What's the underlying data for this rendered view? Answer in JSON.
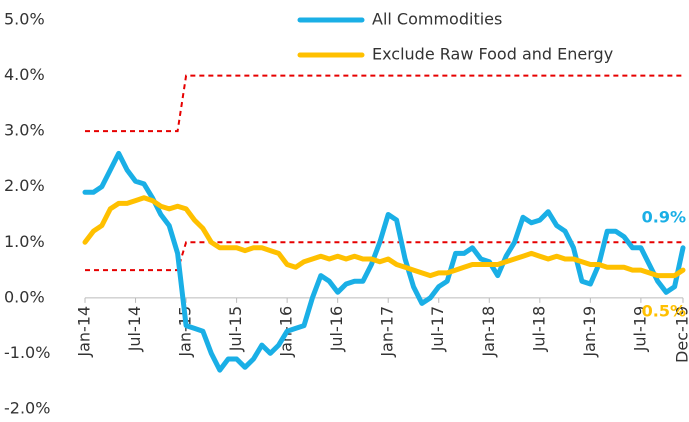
{
  "chart_data": {
    "type": "line",
    "categories": [
      "Jan-14",
      null,
      null,
      null,
      null,
      null,
      "Jul-14",
      null,
      null,
      null,
      null,
      null,
      "Jan-15",
      null,
      null,
      null,
      null,
      null,
      "Jul-15",
      null,
      null,
      null,
      null,
      null,
      "Jan-16",
      null,
      null,
      null,
      null,
      null,
      "Jul-16",
      null,
      null,
      null,
      null,
      null,
      "Jan-17",
      null,
      null,
      null,
      null,
      null,
      "Jul-17",
      null,
      null,
      null,
      null,
      null,
      "Jan-18",
      null,
      null,
      null,
      null,
      null,
      "Jul-18",
      null,
      null,
      null,
      null,
      null,
      "Jan-19",
      null,
      null,
      null,
      null,
      null,
      "Jul-19",
      null,
      null,
      null,
      null,
      "Dec-19"
    ],
    "series": [
      {
        "name": "All Commodities",
        "color": "#1aafe6",
        "values": [
          1.9,
          1.9,
          2.0,
          2.3,
          2.6,
          2.3,
          2.1,
          2.05,
          1.8,
          1.5,
          1.3,
          0.8,
          -0.5,
          -0.55,
          -0.6,
          -1.0,
          -1.3,
          -1.1,
          -1.1,
          -1.25,
          -1.1,
          -0.85,
          -1.0,
          -0.85,
          -0.6,
          -0.55,
          -0.5,
          0.0,
          0.4,
          0.3,
          0.1,
          0.25,
          0.3,
          0.3,
          0.6,
          1.0,
          1.5,
          1.4,
          0.7,
          0.2,
          -0.1,
          0.0,
          0.2,
          0.3,
          0.8,
          0.8,
          0.9,
          0.7,
          0.65,
          0.4,
          0.75,
          1.0,
          1.45,
          1.35,
          1.4,
          1.55,
          1.3,
          1.2,
          0.9,
          0.3,
          0.25,
          0.6,
          1.2,
          1.2,
          1.1,
          0.9,
          0.9,
          0.6,
          0.3,
          0.1,
          0.2,
          0.9
        ]
      },
      {
        "name": "Exclude Raw Food and Energy",
        "color": "#ffc000",
        "values": [
          1.0,
          1.2,
          1.3,
          1.6,
          1.7,
          1.7,
          1.75,
          1.8,
          1.75,
          1.65,
          1.6,
          1.65,
          1.6,
          1.4,
          1.25,
          1.0,
          0.9,
          0.9,
          0.9,
          0.85,
          0.9,
          0.9,
          0.85,
          0.8,
          0.6,
          0.55,
          0.65,
          0.7,
          0.75,
          0.7,
          0.75,
          0.7,
          0.75,
          0.7,
          0.7,
          0.65,
          0.7,
          0.6,
          0.55,
          0.5,
          0.45,
          0.4,
          0.45,
          0.45,
          0.5,
          0.55,
          0.6,
          0.6,
          0.6,
          0.6,
          0.65,
          0.7,
          0.75,
          0.8,
          0.75,
          0.7,
          0.75,
          0.7,
          0.7,
          0.65,
          0.6,
          0.6,
          0.55,
          0.55,
          0.55,
          0.5,
          0.5,
          0.45,
          0.4,
          0.4,
          0.4,
          0.5
        ]
      }
    ],
    "reference_lines": [
      {
        "color": "#e60000",
        "values": [
          3,
          3,
          3,
          3,
          3,
          3,
          3,
          3,
          3,
          3,
          3,
          3,
          4,
          4,
          4,
          4,
          4,
          4,
          4,
          4,
          4,
          4,
          4,
          4,
          4,
          4,
          4,
          4,
          4,
          4,
          4,
          4,
          4,
          4,
          4,
          4,
          4,
          4,
          4,
          4,
          4,
          4,
          4,
          4,
          4,
          4,
          4,
          4,
          4,
          4,
          4,
          4,
          4,
          4,
          4,
          4,
          4,
          4,
          4,
          4,
          4,
          4,
          4,
          4,
          4,
          4,
          4,
          4,
          4,
          4,
          4,
          4
        ]
      },
      {
        "color": "#e60000",
        "values": [
          0.5,
          0.5,
          0.5,
          0.5,
          0.5,
          0.5,
          0.5,
          0.5,
          0.5,
          0.5,
          0.5,
          0.5,
          1,
          1,
          1,
          1,
          1,
          1,
          1,
          1,
          1,
          1,
          1,
          1,
          1,
          1,
          1,
          1,
          1,
          1,
          1,
          1,
          1,
          1,
          1,
          1,
          1,
          1,
          1,
          1,
          1,
          1,
          1,
          1,
          1,
          1,
          1,
          1,
          1,
          1,
          1,
          1,
          1,
          1,
          1,
          1,
          1,
          1,
          1,
          1,
          1,
          1,
          1,
          1,
          1,
          1,
          1,
          1,
          1,
          1,
          1,
          1
        ]
      }
    ],
    "annotations": [
      {
        "text": "0.9%",
        "series": 0,
        "value": 0.9,
        "position": "above"
      },
      {
        "text": "0.5%",
        "series": 1,
        "value": 0.5,
        "position": "below"
      }
    ],
    "ylim": [
      -2,
      5
    ],
    "yticks": [
      {
        "value": -2,
        "label": "-2.0%"
      },
      {
        "value": -1,
        "label": "-1.0%"
      },
      {
        "value": 0,
        "label": "0.0%"
      },
      {
        "value": 1,
        "label": "1.0%"
      },
      {
        "value": 2,
        "label": "2.0%"
      },
      {
        "value": 3,
        "label": "3.0%"
      },
      {
        "value": 4,
        "label": "4.0%"
      },
      {
        "value": 5,
        "label": "5.0%"
      }
    ],
    "grid": false,
    "legend": "top"
  }
}
